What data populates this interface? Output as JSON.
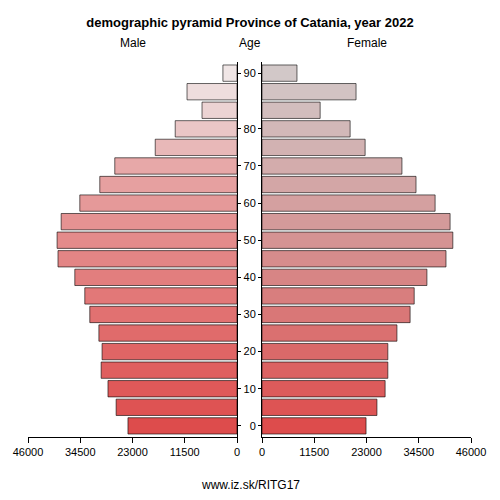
{
  "chart_data": {
    "type": "bar",
    "orientation": "horizontal",
    "title": "demographic pyramid Province of Catania, year 2022",
    "ylabel": "Age",
    "annotations": [
      "www.iz.sk/RITG17"
    ],
    "categories": [
      "0",
      null,
      "10",
      null,
      "20",
      null,
      "30",
      null,
      "40",
      null,
      "50",
      null,
      "60",
      null,
      "70",
      null,
      "80",
      null,
      null,
      "90"
    ],
    "series": [
      {
        "name": "Male",
        "values": [
          24000,
          26600,
          28400,
          29900,
          29700,
          30400,
          32400,
          33500,
          35700,
          39400,
          39600,
          38700,
          34600,
          30200,
          26900,
          18000,
          13600,
          7700,
          11000,
          3100
        ],
        "colors": [
          "#dd4c4c",
          "#de5353",
          "#df5959",
          "#df5f5f",
          "#e06565",
          "#e06b6b",
          "#e17171",
          "#e27878",
          "#e27e7e",
          "#e38585",
          "#e48b8b",
          "#e59292",
          "#e59999",
          "#e6a0a0",
          "#e7a8a8",
          "#e8b8b8",
          "#eac6c6",
          "#ecd3d3",
          "#eedddd",
          "#f0e6e6"
        ]
      },
      {
        "name": "Female",
        "values": [
          22900,
          25300,
          27100,
          27700,
          27700,
          29700,
          32600,
          33500,
          36300,
          40500,
          42000,
          41400,
          38100,
          33900,
          30800,
          22700,
          19400,
          12800,
          20700,
          7700
        ],
        "colors": [
          "#dd4c4c",
          "#dd5454",
          "#dc5b5b",
          "#db6262",
          "#da6969",
          "#da7070",
          "#d97777",
          "#d87e7e",
          "#d78585",
          "#d68c8c",
          "#d59393",
          "#d49a9a",
          "#d4a0a0",
          "#d3a6a6",
          "#d3acac",
          "#d2b2b2",
          "#d2b8b8",
          "#d2bdbd",
          "#d2c3c3",
          "#d2c8c8"
        ]
      }
    ],
    "xlim": [
      0,
      46000
    ],
    "xticks": [
      0,
      11500,
      23000,
      34500,
      46000
    ],
    "grid": false
  }
}
